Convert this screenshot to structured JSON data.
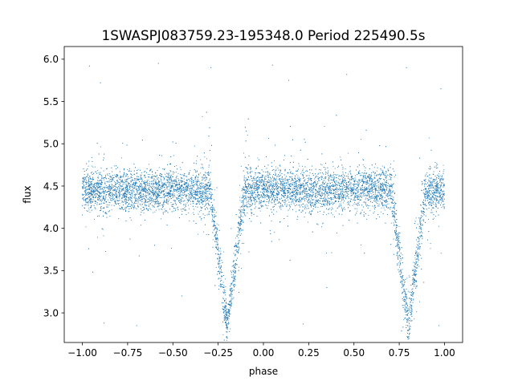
{
  "chart_data": {
    "type": "scatter",
    "title": "1SWASPJ083759.23-195348.0 Period 225490.5s",
    "xlabel": "phase",
    "ylabel": "flux",
    "xlim": [
      -1.1,
      1.1
    ],
    "ylim": [
      2.65,
      6.15
    ],
    "xticks": [
      -1.0,
      -0.75,
      -0.5,
      -0.25,
      0.0,
      0.25,
      0.5,
      0.75,
      1.0
    ],
    "xtick_labels": [
      "−1.00",
      "−0.75",
      "−0.50",
      "−0.25",
      "0.00",
      "0.25",
      "0.50",
      "0.75",
      "1.00"
    ],
    "yticks": [
      3.0,
      3.5,
      4.0,
      4.5,
      5.0,
      5.5,
      6.0
    ],
    "ytick_labels": [
      "3.0",
      "3.5",
      "4.0",
      "4.5",
      "5.0",
      "5.5",
      "6.0"
    ],
    "grid": false,
    "point_color": "#1f77b4",
    "series_shape": {
      "phase_range": [
        -1.0,
        1.0
      ],
      "baseline_flux": 4.45,
      "eclipse_centers": [
        -0.2,
        0.8
      ],
      "eclipse_min_flux": 2.85
    },
    "outlier_points": [
      {
        "x": -0.96,
        "y": 5.92
      },
      {
        "x": -0.9,
        "y": 5.72
      },
      {
        "x": -0.58,
        "y": 5.95
      },
      {
        "x": -0.29,
        "y": 5.9
      },
      {
        "x": 0.05,
        "y": 5.93
      },
      {
        "x": 0.14,
        "y": 5.75
      },
      {
        "x": 0.46,
        "y": 5.82
      },
      {
        "x": 0.79,
        "y": 5.9
      },
      {
        "x": 0.98,
        "y": 5.65
      },
      {
        "x": -0.88,
        "y": 2.88
      },
      {
        "x": -0.7,
        "y": 2.85
      },
      {
        "x": 0.22,
        "y": 2.87
      },
      {
        "x": 0.97,
        "y": 2.85
      },
      {
        "x": -0.45,
        "y": 3.2
      },
      {
        "x": 0.35,
        "y": 3.3
      }
    ]
  }
}
